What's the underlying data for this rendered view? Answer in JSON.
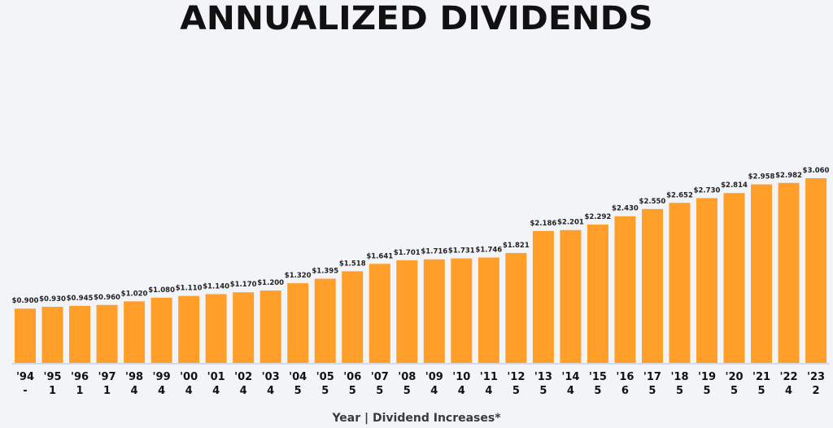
{
  "chart_data": {
    "type": "bar",
    "title": "ANNUALIZED DIVIDENDS",
    "xlabel": "Year | Dividend Increases*",
    "ylabel": "",
    "ylim": [
      0,
      3.06
    ],
    "grid": false,
    "categories": [
      "'94",
      "'95",
      "'96",
      "'97",
      "'98",
      "'99",
      "'00",
      "'01",
      "'02",
      "'03",
      "'04",
      "'05",
      "'06",
      "'07",
      "'08",
      "'09",
      "'10",
      "'11",
      "'12",
      "'13",
      "'14",
      "'15",
      "'16",
      "'17",
      "'18",
      "'19",
      "'20",
      "'21",
      "'22",
      "'23"
    ],
    "increases": [
      "-",
      "1",
      "1",
      "1",
      "4",
      "4",
      "4",
      "4",
      "4",
      "4",
      "5",
      "5",
      "5",
      "5",
      "5",
      "4",
      "4",
      "4",
      "5",
      "5",
      "4",
      "5",
      "6",
      "5",
      "5",
      "5",
      "5",
      "5",
      "4",
      "2"
    ],
    "values": [
      0.9,
      0.93,
      0.945,
      0.96,
      1.02,
      1.08,
      1.11,
      1.14,
      1.17,
      1.2,
      1.32,
      1.395,
      1.518,
      1.641,
      1.701,
      1.716,
      1.731,
      1.746,
      1.821,
      2.186,
      2.201,
      2.292,
      2.43,
      2.55,
      2.652,
      2.73,
      2.814,
      2.958,
      2.982,
      3.06
    ],
    "labels": [
      "$0.900",
      "$0.930",
      "$0.945",
      "$0.960",
      "$1.020",
      "$1.080",
      "$1.110",
      "$1.140",
      "$1.170",
      "$1.200",
      "$1.320",
      "$1.395",
      "$1.518",
      "$1.641",
      "$1.701",
      "$1.716",
      "$1.731",
      "$1.746",
      "$1.821",
      "$2.186",
      "$2.201",
      "$2.292",
      "$2.430",
      "$2.550",
      "$2.652",
      "$2.730",
      "$2.814",
      "$2.958",
      "$2.982",
      "$3.060"
    ],
    "bar_color": "#ff9f29",
    "axis_color": "#d5d9e6"
  }
}
